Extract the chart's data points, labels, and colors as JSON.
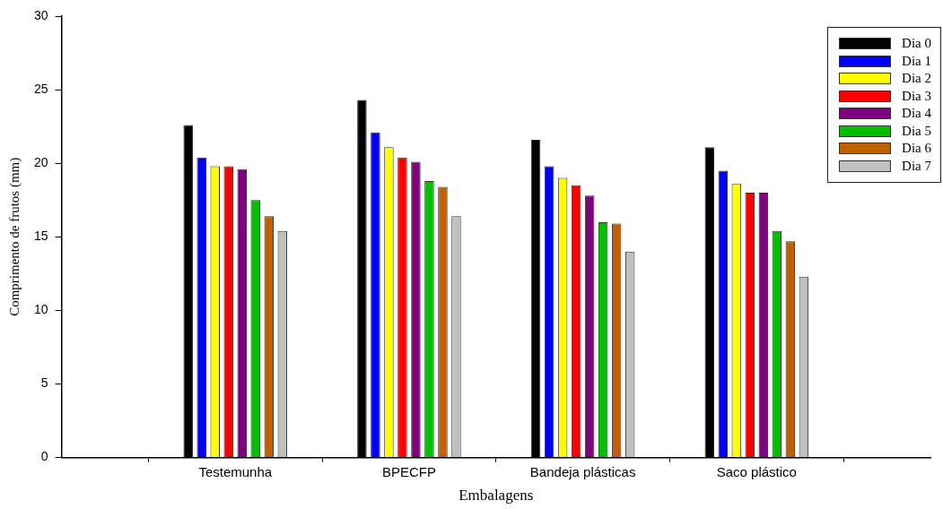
{
  "chart_data": {
    "type": "bar",
    "xlabel": "Embalagens",
    "ylabel": "Comprimento de frutos (mm)",
    "categories": [
      "Testemunha",
      "BPECFP",
      "Bandeja plásticas",
      "Saco plástico"
    ],
    "series": [
      {
        "name": "Dia 0",
        "color": "#000000",
        "values": [
          22.6,
          24.3,
          21.6,
          21.1
        ]
      },
      {
        "name": "Dia 1",
        "color": "#0000ff",
        "values": [
          20.4,
          22.1,
          19.8,
          19.5
        ]
      },
      {
        "name": "Dia 2",
        "color": "#ffff00",
        "values": [
          19.8,
          21.1,
          19.0,
          18.6
        ]
      },
      {
        "name": "Dia 3",
        "color": "#ff0000",
        "values": [
          19.8,
          20.4,
          18.5,
          18.0
        ]
      },
      {
        "name": "Dia 4",
        "color": "#800080",
        "values": [
          19.6,
          20.1,
          17.8,
          18.0
        ]
      },
      {
        "name": "Dia 5",
        "color": "#00c000",
        "values": [
          17.5,
          18.8,
          16.0,
          15.4
        ]
      },
      {
        "name": "Dia 6",
        "color": "#c06000",
        "values": [
          16.4,
          18.4,
          15.9,
          14.7
        ]
      },
      {
        "name": "Dia 7",
        "color": "#c0c0c0",
        "values": [
          15.4,
          16.4,
          14.0,
          12.3
        ]
      }
    ],
    "ylim": [
      0,
      30
    ],
    "yticks": [
      0,
      5,
      10,
      15,
      20,
      25,
      30
    ],
    "grid": false,
    "legend": "top right"
  }
}
